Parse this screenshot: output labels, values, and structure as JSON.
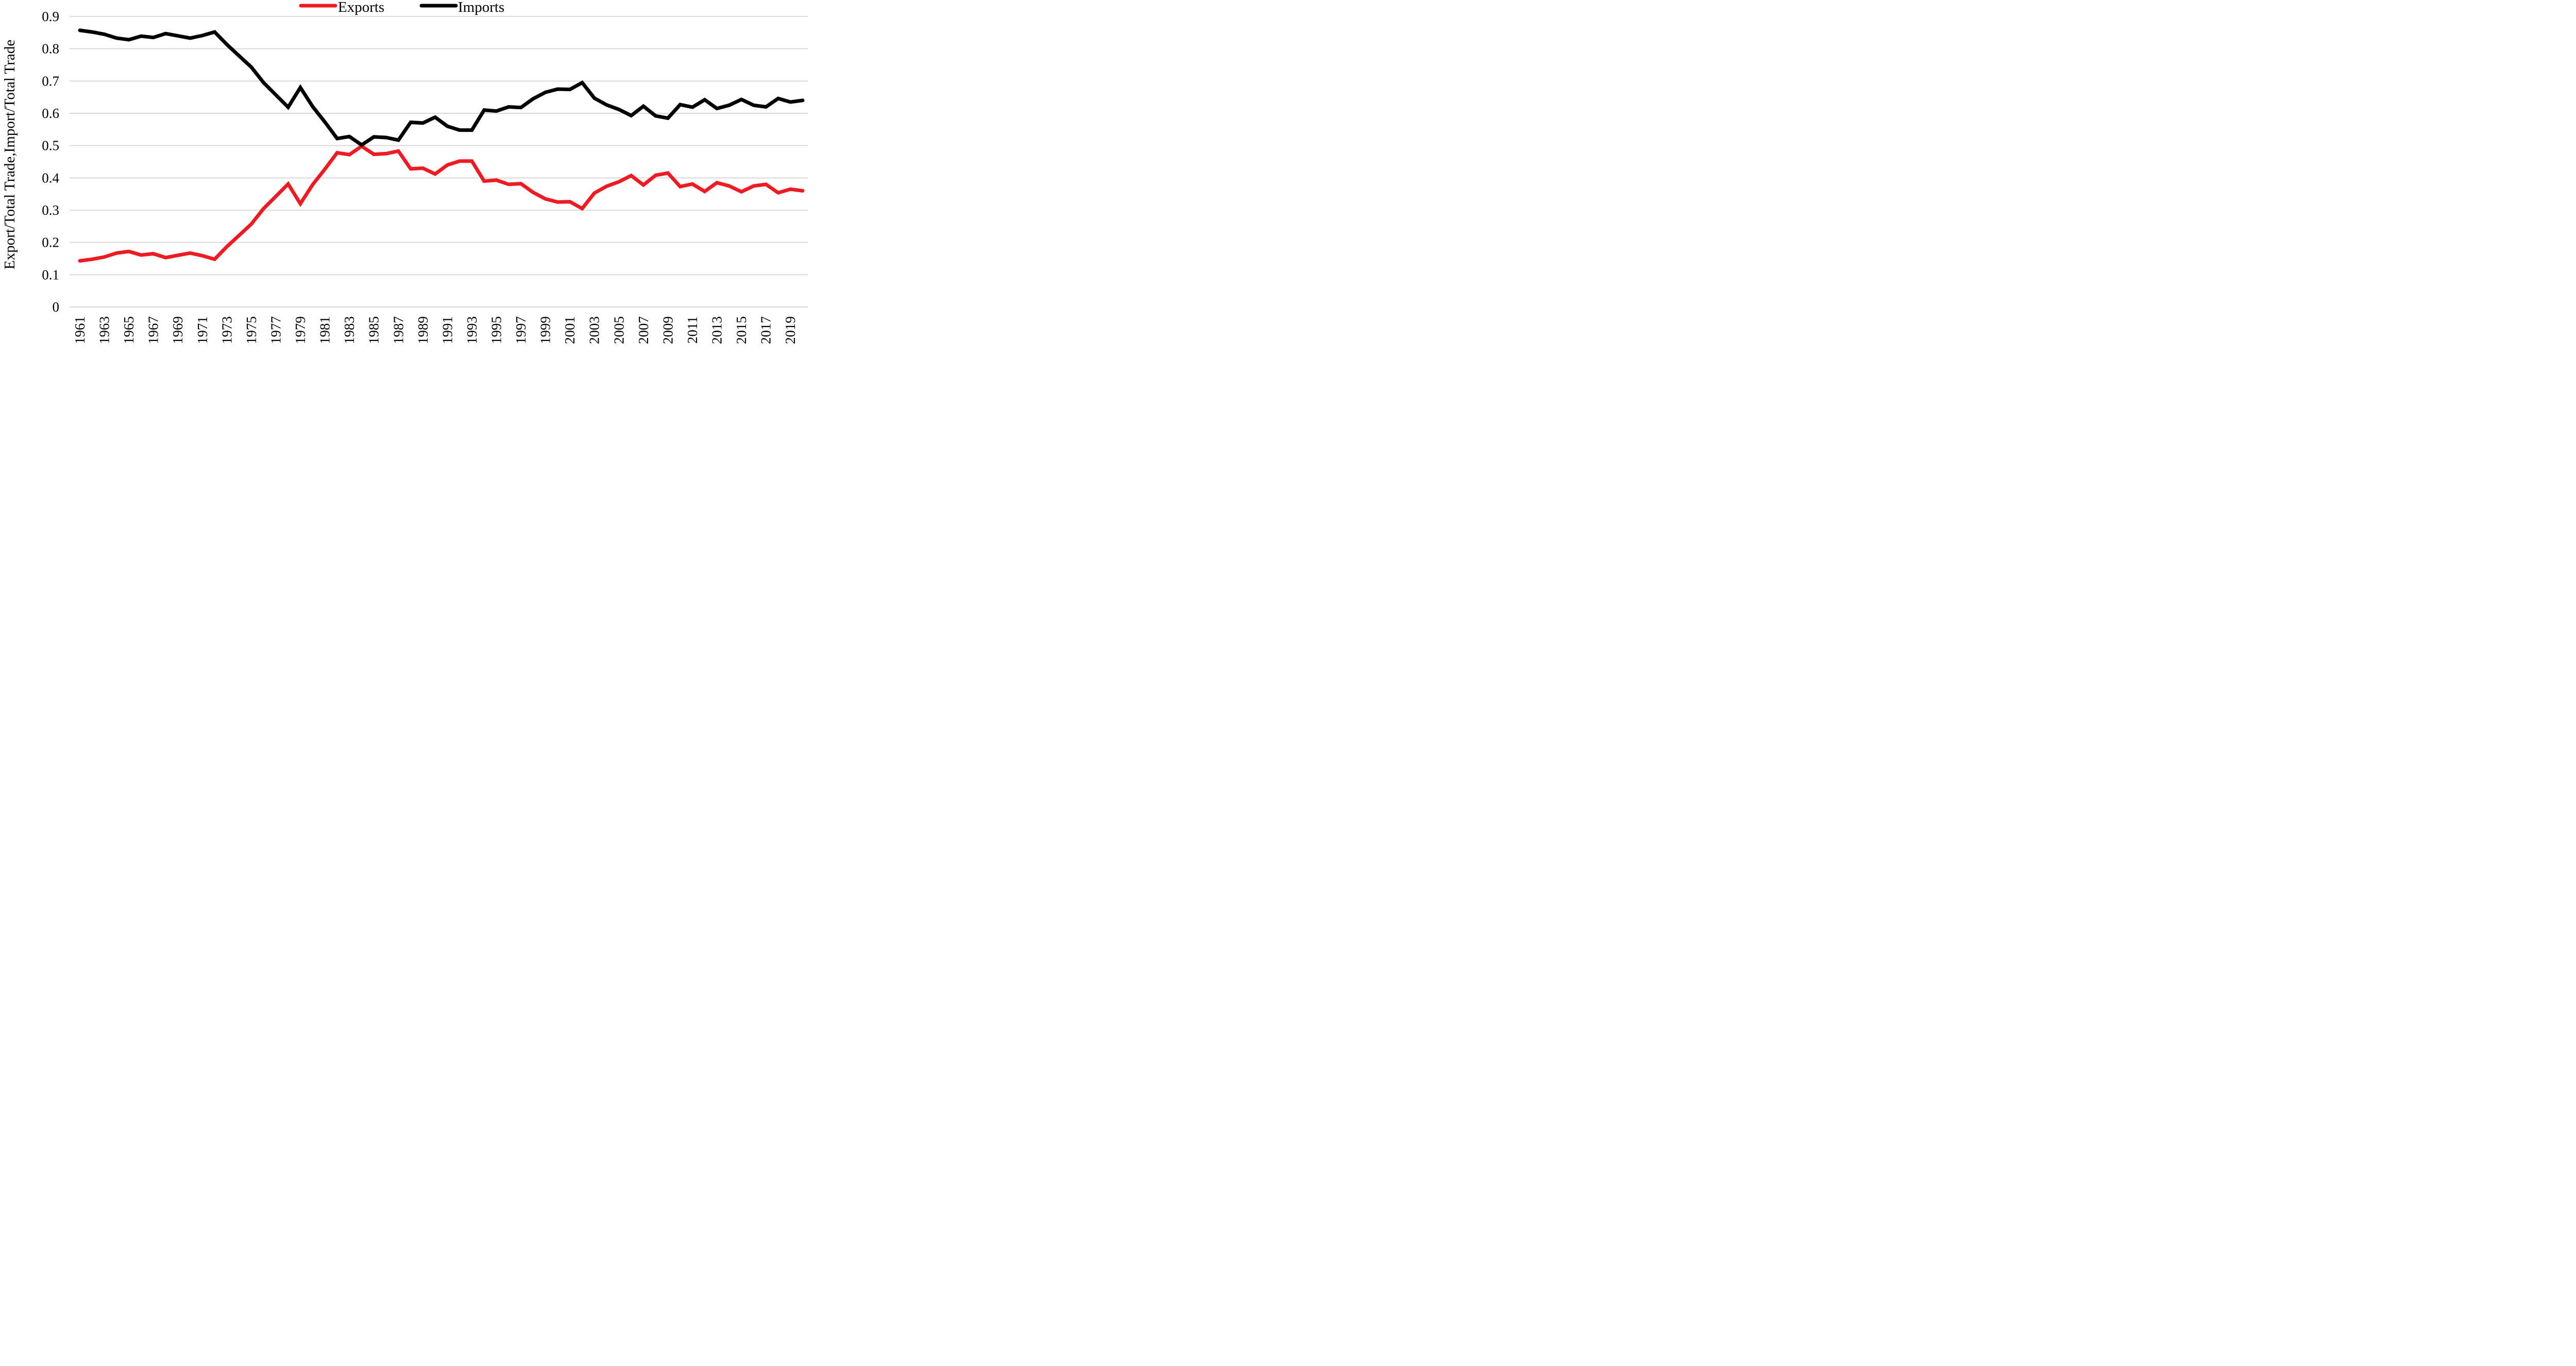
{
  "chart_data": {
    "type": "line",
    "title": "",
    "xlabel": "",
    "ylabel": "Export/Total Trade,Import/Total Trade",
    "ylim": [
      0,
      0.9
    ],
    "yticks": [
      "0",
      "0.1",
      "0.2",
      "0.3",
      "0.4",
      "0.5",
      "0.6",
      "0.7",
      "0.8",
      "0.9"
    ],
    "ytick_values": [
      0,
      0.1,
      0.2,
      0.3,
      0.4,
      0.5,
      0.6,
      0.7,
      0.8,
      0.9
    ],
    "grid": true,
    "legend_position": "top-center",
    "x": [
      1961,
      1962,
      1963,
      1964,
      1965,
      1966,
      1967,
      1968,
      1969,
      1970,
      1971,
      1972,
      1973,
      1974,
      1975,
      1976,
      1977,
      1978,
      1979,
      1980,
      1981,
      1982,
      1983,
      1984,
      1985,
      1986,
      1987,
      1988,
      1989,
      1990,
      1991,
      1992,
      1993,
      1994,
      1995,
      1996,
      1997,
      1998,
      1999,
      2000,
      2001,
      2002,
      2003,
      2004,
      2005,
      2006,
      2007,
      2008,
      2009,
      2010,
      2011,
      2012,
      2013,
      2014,
      2015,
      2016,
      2017,
      2018,
      2019,
      2020
    ],
    "xtick_labels": [
      "1961",
      "1963",
      "1965",
      "1967",
      "1969",
      "1971",
      "1973",
      "1975",
      "1977",
      "1979",
      "1981",
      "1983",
      "1985",
      "1987",
      "1989",
      "1991",
      "1993",
      "1995",
      "1997",
      "1999",
      "2001",
      "2003",
      "2005",
      "2007",
      "2009",
      "2011",
      "2013",
      "2015",
      "2017",
      "2019"
    ],
    "series": [
      {
        "name": "Exports",
        "color": "#ed1c24",
        "values": [
          0.143,
          0.148,
          0.155,
          0.167,
          0.172,
          0.161,
          0.165,
          0.153,
          0.16,
          0.167,
          0.159,
          0.148,
          0.187,
          0.222,
          0.257,
          0.305,
          0.343,
          0.381,
          0.32,
          0.379,
          0.427,
          0.478,
          0.472,
          0.498,
          0.473,
          0.475,
          0.483,
          0.428,
          0.43,
          0.412,
          0.44,
          0.452,
          0.452,
          0.39,
          0.393,
          0.38,
          0.382,
          0.355,
          0.335,
          0.325,
          0.326,
          0.305,
          0.353,
          0.374,
          0.388,
          0.407,
          0.378,
          0.408,
          0.415,
          0.373,
          0.381,
          0.358,
          0.385,
          0.375,
          0.357,
          0.375,
          0.38,
          0.354,
          0.365,
          0.36
        ]
      },
      {
        "name": "Imports",
        "color": "#000000",
        "values": [
          0.857,
          0.852,
          0.845,
          0.833,
          0.828,
          0.839,
          0.835,
          0.847,
          0.84,
          0.833,
          0.841,
          0.852,
          0.813,
          0.778,
          0.743,
          0.695,
          0.657,
          0.619,
          0.68,
          0.621,
          0.573,
          0.522,
          0.528,
          0.502,
          0.527,
          0.525,
          0.517,
          0.572,
          0.57,
          0.588,
          0.56,
          0.548,
          0.548,
          0.61,
          0.607,
          0.62,
          0.618,
          0.645,
          0.665,
          0.675,
          0.674,
          0.695,
          0.647,
          0.626,
          0.612,
          0.593,
          0.622,
          0.592,
          0.585,
          0.627,
          0.619,
          0.642,
          0.615,
          0.625,
          0.643,
          0.625,
          0.62,
          0.646,
          0.635,
          0.64
        ]
      }
    ]
  }
}
